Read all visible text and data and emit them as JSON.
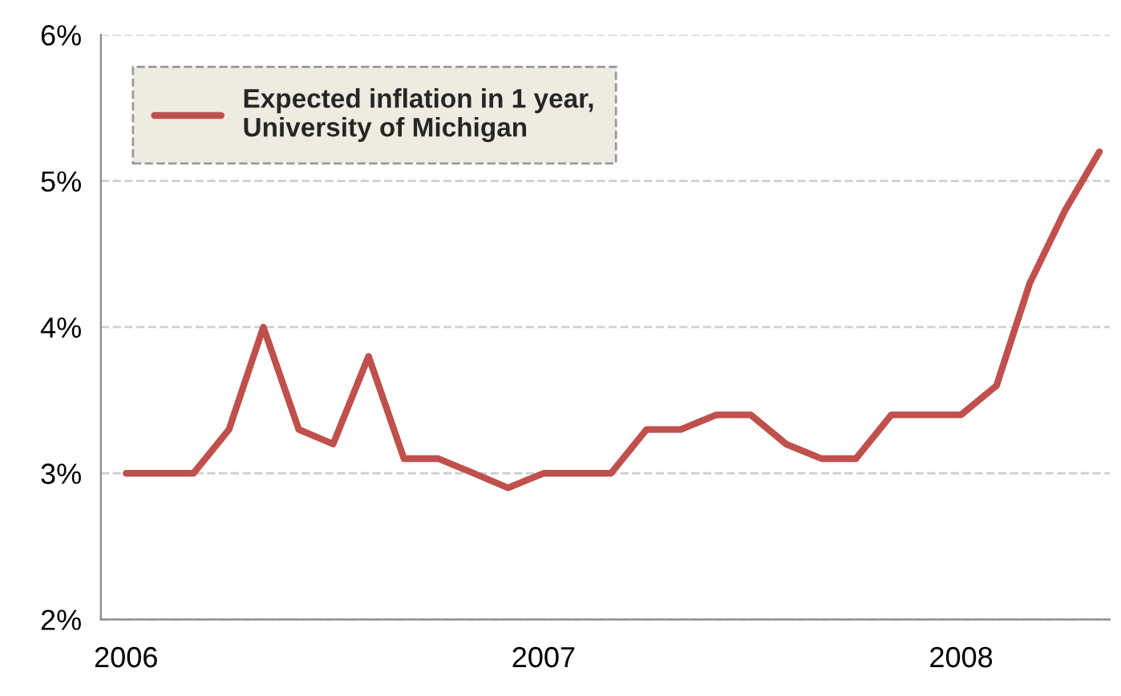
{
  "chart_data": {
    "type": "line",
    "x": [
      "2006-01",
      "2006-02",
      "2006-03",
      "2006-04",
      "2006-05",
      "2006-06",
      "2006-07",
      "2006-08",
      "2006-09",
      "2006-10",
      "2006-11",
      "2006-12",
      "2007-01",
      "2007-02",
      "2007-03",
      "2007-04",
      "2007-05",
      "2007-06",
      "2007-07",
      "2007-08",
      "2007-09",
      "2007-10",
      "2007-11",
      "2007-12",
      "2008-01",
      "2008-02",
      "2008-03",
      "2008-04",
      "2008-05"
    ],
    "series": [
      {
        "name": "Expected inflation in 1 year,\nUniversity of Michigan",
        "color": "#c0504d",
        "values": [
          3.0,
          3.0,
          3.0,
          3.3,
          4.0,
          3.3,
          3.2,
          3.8,
          3.1,
          3.1,
          3.0,
          2.9,
          3.0,
          3.0,
          3.0,
          3.3,
          3.3,
          3.4,
          3.4,
          3.2,
          3.1,
          3.1,
          3.4,
          3.4,
          3.4,
          3.6,
          4.3,
          4.8,
          5.2
        ]
      }
    ],
    "xlim": [
      "2005-12-10",
      "2008-05-10"
    ],
    "xticks": [
      {
        "value": "2006-01",
        "label": "2006"
      },
      {
        "value": "2007-01",
        "label": "2007"
      },
      {
        "value": "2008-01",
        "label": "2008"
      }
    ],
    "ylim": [
      2,
      6
    ],
    "yticks": [
      {
        "value": 2,
        "label": "2%"
      },
      {
        "value": 3,
        "label": "3%"
      },
      {
        "value": 4,
        "label": "4%"
      },
      {
        "value": 5,
        "label": "5%"
      },
      {
        "value": 6,
        "label": "6%"
      }
    ],
    "grid": "y",
    "legend": "top left",
    "marker": "none",
    "line_style": "solid"
  }
}
